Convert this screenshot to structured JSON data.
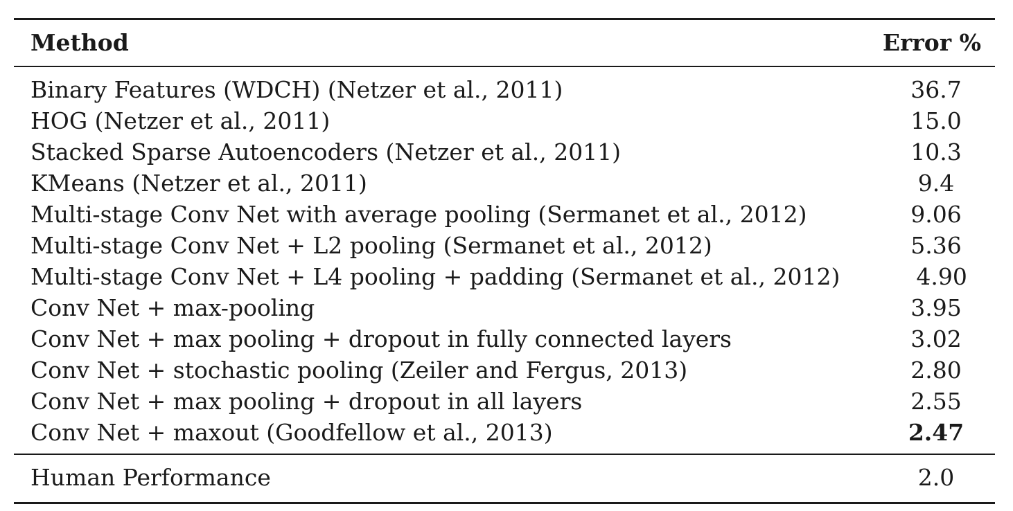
{
  "table": {
    "columns": [
      "Method",
      "Error %"
    ],
    "rows": [
      {
        "method": "Binary Features (WDCH) (Netzer et al., 2011)",
        "error": "36.7"
      },
      {
        "method": "HOG (Netzer et al., 2011)",
        "error": "15.0"
      },
      {
        "method": "Stacked Sparse Autoencoders (Netzer et al., 2011)",
        "error": "10.3"
      },
      {
        "method": "KMeans (Netzer et al., 2011)",
        "error": "9.4"
      },
      {
        "method": "Multi-stage Conv Net with average pooling (Sermanet et al., 2012)",
        "error": "9.06"
      },
      {
        "method": "Multi-stage Conv Net + L2 pooling (Sermanet et al., 2012)",
        "error": "5.36"
      },
      {
        "method": "Multi-stage Conv Net + L4 pooling + padding (Sermanet et al., 2012)",
        "error": "4.90"
      },
      {
        "method": "Conv Net + max-pooling",
        "error": "3.95"
      },
      {
        "method": "Conv Net + max pooling + dropout in fully connected layers",
        "error": "3.02"
      },
      {
        "method": "Conv Net + stochastic pooling (Zeiler and Fergus, 2013)",
        "error": "2.80"
      },
      {
        "method": "Conv Net + max pooling + dropout in all layers",
        "error": "2.55"
      },
      {
        "method": "Conv Net + maxout (Goodfellow et al., 2013)",
        "error": "2.47",
        "bold": true
      }
    ],
    "footer": {
      "method": "Human Performance",
      "error": "2.0"
    }
  }
}
